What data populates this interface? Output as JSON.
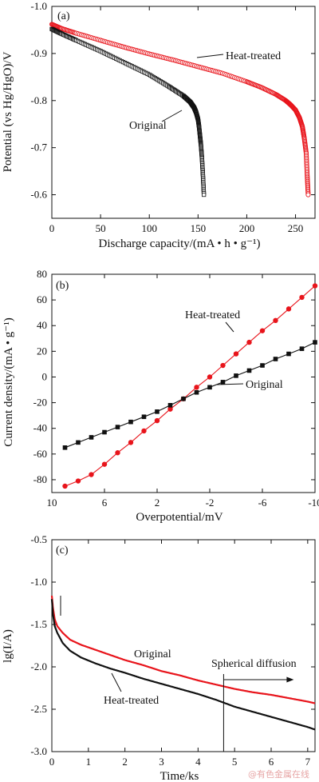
{
  "watermark": "@有色金属在线",
  "colors": {
    "red": "#e8141b",
    "black": "#111111",
    "axis": "#111111"
  },
  "chart_data": [
    {
      "type": "scatter",
      "panel_label": "(a)",
      "xlabel": "Discharge capacity/(mA • h • g⁻¹)",
      "ylabel": "Potential (vs Hg/HgO)/V",
      "xlim": [
        0,
        270
      ],
      "ylim": [
        -0.55,
        -1.0
      ],
      "xticks": [
        0,
        50,
        100,
        150,
        200,
        250
      ],
      "yticks": [
        -1.0,
        -0.9,
        -0.8,
        -0.7,
        -0.6
      ],
      "xtick_labels": [
        "0",
        "50",
        "100",
        "150",
        "200",
        "250"
      ],
      "ytick_labels": [
        "-1.0",
        "-0.9",
        "-0.8",
        "-0.7",
        "-0.6"
      ],
      "series": [
        {
          "name": "Heat-treated",
          "color": "#e8141b",
          "marker": "open-circle",
          "x": [
            0,
            10,
            25,
            50,
            75,
            100,
            125,
            150,
            175,
            200,
            215,
            230,
            240,
            245,
            250,
            254,
            257,
            259,
            261,
            262,
            263
          ],
          "y": [
            -0.962,
            -0.953,
            -0.943,
            -0.928,
            -0.913,
            -0.899,
            -0.886,
            -0.872,
            -0.858,
            -0.84,
            -0.828,
            -0.813,
            -0.8,
            -0.791,
            -0.78,
            -0.764,
            -0.745,
            -0.72,
            -0.688,
            -0.64,
            -0.6
          ]
        },
        {
          "name": "Original",
          "color": "#111111",
          "marker": "open-square",
          "x": [
            0,
            10,
            25,
            50,
            75,
            100,
            120,
            135,
            142,
            146,
            148,
            150,
            151,
            152,
            153,
            154,
            155,
            156
          ],
          "y": [
            -0.952,
            -0.942,
            -0.928,
            -0.905,
            -0.88,
            -0.855,
            -0.83,
            -0.81,
            -0.797,
            -0.785,
            -0.775,
            -0.76,
            -0.745,
            -0.725,
            -0.705,
            -0.678,
            -0.642,
            -0.6
          ]
        }
      ],
      "annotations": [
        "Heat-treated",
        "Original"
      ]
    },
    {
      "type": "line",
      "panel_label": "(b)",
      "xlabel": "Overpotential/mV",
      "ylabel": "Current density/(mA • g⁻¹)",
      "xlim": [
        10,
        -10
      ],
      "ylim": [
        -90,
        80
      ],
      "xticks": [
        10,
        6,
        2,
        -2,
        -6,
        -10
      ],
      "yticks": [
        -80,
        -60,
        -40,
        -20,
        0,
        20,
        40,
        60,
        80
      ],
      "xtick_labels": [
        "10",
        "6",
        "2",
        "-2",
        "-6",
        "-10"
      ],
      "ytick_labels": [
        "-80",
        "-60",
        "-40",
        "-20",
        "0",
        "20",
        "40",
        "60",
        "80"
      ],
      "series": [
        {
          "name": "Heat-treated",
          "color": "#e8141b",
          "marker": "filled-circle",
          "x": [
            9,
            8,
            7,
            6,
            5,
            4,
            3,
            2,
            1,
            0,
            -1,
            -2,
            -3,
            -4,
            -5,
            -6,
            -7,
            -8,
            -9,
            -10
          ],
          "y": [
            -85,
            -81,
            -76,
            -68,
            -59,
            -51,
            -42,
            -34,
            -25,
            -17,
            -8,
            0,
            9,
            18,
            27,
            36,
            44,
            53,
            62,
            71
          ]
        },
        {
          "name": "Original",
          "color": "#111111",
          "marker": "filled-square",
          "x": [
            9,
            8,
            7,
            6,
            5,
            4,
            3,
            2,
            1,
            0,
            -1,
            -2,
            -3,
            -4,
            -5,
            -6,
            -7,
            -8,
            -9,
            -10
          ],
          "y": [
            -55,
            -51,
            -47,
            -43,
            -39,
            -35,
            -31,
            -27,
            -22,
            -17,
            -12,
            -8,
            -4,
            1,
            5,
            9,
            14,
            18,
            22,
            27
          ]
        }
      ],
      "annotations": [
        "Heat-treated",
        "Original"
      ]
    },
    {
      "type": "line",
      "panel_label": "(c)",
      "xlabel": "Time/ks",
      "ylabel": "lg(I/A)",
      "xlim": [
        0,
        7.2
      ],
      "ylim": [
        -3.0,
        -0.5
      ],
      "xticks": [
        0,
        1,
        2,
        3,
        4,
        5,
        6,
        7
      ],
      "yticks": [
        -0.5,
        -1.0,
        -1.5,
        -2.0,
        -2.5,
        -3.0
      ],
      "xtick_labels": [
        "0",
        "1",
        "2",
        "3",
        "4",
        "5",
        "6",
        "7"
      ],
      "ytick_labels": [
        "-0.5",
        "-1.0",
        "-1.5",
        "-2.0",
        "-2.5",
        "-3.0"
      ],
      "series": [
        {
          "name": "Original",
          "color": "#e8141b",
          "x": [
            0,
            0.03,
            0.08,
            0.15,
            0.3,
            0.5,
            0.8,
            1.2,
            1.6,
            2.0,
            2.5,
            3.0,
            3.5,
            4.0,
            4.5,
            5.0,
            5.5,
            6.0,
            6.5,
            7.0,
            7.2
          ],
          "y": [
            -1.16,
            -1.3,
            -1.44,
            -1.52,
            -1.6,
            -1.68,
            -1.74,
            -1.8,
            -1.86,
            -1.92,
            -1.98,
            -2.05,
            -2.1,
            -2.16,
            -2.21,
            -2.26,
            -2.3,
            -2.33,
            -2.37,
            -2.41,
            -2.43
          ]
        },
        {
          "name": "Heat-treated",
          "color": "#111111",
          "x": [
            0,
            0.03,
            0.08,
            0.15,
            0.3,
            0.5,
            0.8,
            1.2,
            1.6,
            2.0,
            2.5,
            3.0,
            3.5,
            4.0,
            4.5,
            5.0,
            5.5,
            6.0,
            6.5,
            7.0,
            7.2
          ],
          "y": [
            -1.2,
            -1.38,
            -1.52,
            -1.6,
            -1.72,
            -1.81,
            -1.89,
            -1.96,
            -2.02,
            -2.07,
            -2.14,
            -2.2,
            -2.26,
            -2.32,
            -2.39,
            -2.47,
            -2.53,
            -2.59,
            -2.65,
            -2.71,
            -2.74
          ]
        }
      ],
      "annotations": [
        "Original",
        "Heat-treated",
        "Spherical diffusion"
      ],
      "vline_x": 4.7
    }
  ]
}
